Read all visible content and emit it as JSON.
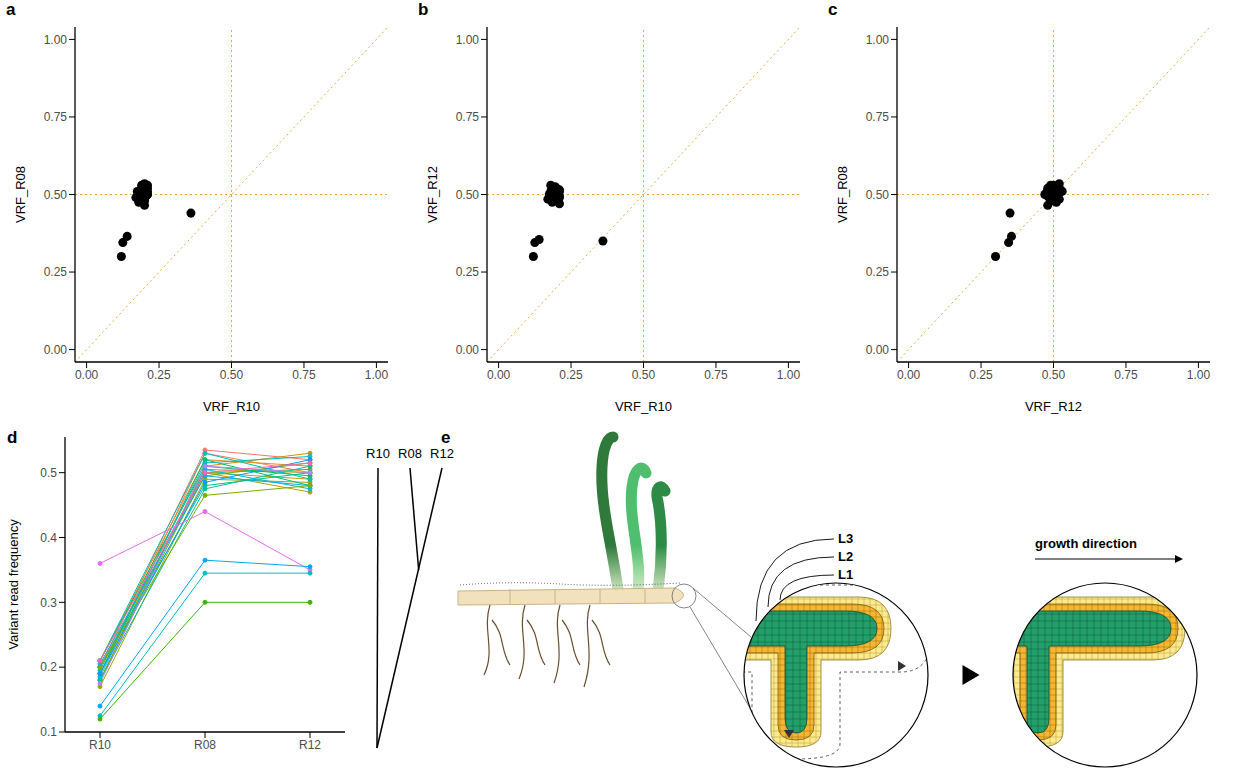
{
  "chart_data": [
    {
      "panel": "a",
      "type": "scatter",
      "x_label": "VRF_R10",
      "y_label": "VRF_R08",
      "color": "#000000",
      "x": [
        0.2,
        0.19,
        0.21,
        0.18,
        0.2,
        0.19,
        0.21,
        0.17,
        0.2,
        0.18,
        0.21,
        0.19,
        0.2,
        0.18,
        0.21,
        0.195,
        0.185,
        0.205,
        0.19,
        0.2,
        0.175,
        0.21,
        0.36,
        0.14,
        0.125,
        0.12
      ],
      "y": [
        0.535,
        0.53,
        0.52,
        0.51,
        0.5,
        0.505,
        0.5,
        0.49,
        0.495,
        0.5,
        0.51,
        0.52,
        0.48,
        0.475,
        0.53,
        0.515,
        0.505,
        0.495,
        0.485,
        0.465,
        0.51,
        0.5,
        0.44,
        0.365,
        0.345,
        0.3
      ],
      "xlim": [
        -0.04,
        1.04
      ],
      "ylim": [
        -0.04,
        1.04
      ],
      "xticks": [
        {
          "value": 0,
          "label": "0.00"
        },
        {
          "value": 0.25,
          "label": "0.25"
        },
        {
          "value": 0.5,
          "label": "0.50"
        },
        {
          "value": 0.75,
          "label": "0.75"
        },
        {
          "value": 1,
          "label": "1.00"
        }
      ],
      "yticks": [
        {
          "value": 0,
          "label": "0.00"
        },
        {
          "value": 0.25,
          "label": "0.25"
        },
        {
          "value": 0.5,
          "label": "0.50"
        },
        {
          "value": 0.75,
          "label": "0.75"
        },
        {
          "value": 1,
          "label": "1.00"
        }
      ],
      "vlines": [
        0.5
      ],
      "hlines": [
        0.5
      ],
      "abline": {
        "intercept": 0,
        "slope": 1
      }
    },
    {
      "panel": "b",
      "type": "scatter",
      "x_label": "VRF_R10",
      "y_label": "VRF_R12",
      "color": "#000000",
      "x": [
        0.2,
        0.19,
        0.21,
        0.18,
        0.2,
        0.19,
        0.21,
        0.17,
        0.2,
        0.18,
        0.21,
        0.19,
        0.2,
        0.18,
        0.21,
        0.195,
        0.185,
        0.205,
        0.19,
        0.2,
        0.175,
        0.21,
        0.36,
        0.14,
        0.125,
        0.12
      ],
      "y": [
        0.52,
        0.5,
        0.51,
        0.53,
        0.49,
        0.5,
        0.47,
        0.485,
        0.515,
        0.505,
        0.495,
        0.48,
        0.5,
        0.51,
        0.49,
        0.525,
        0.475,
        0.48,
        0.52,
        0.48,
        0.5,
        0.515,
        0.35,
        0.355,
        0.345,
        0.3
      ],
      "xlim": [
        -0.04,
        1.04
      ],
      "ylim": [
        -0.04,
        1.04
      ],
      "xticks": [
        {
          "value": 0,
          "label": "0.00"
        },
        {
          "value": 0.25,
          "label": "0.25"
        },
        {
          "value": 0.5,
          "label": "0.50"
        },
        {
          "value": 0.75,
          "label": "0.75"
        },
        {
          "value": 1,
          "label": "1.00"
        }
      ],
      "yticks": [
        {
          "value": 0,
          "label": "0.00"
        },
        {
          "value": 0.25,
          "label": "0.25"
        },
        {
          "value": 0.5,
          "label": "0.50"
        },
        {
          "value": 0.75,
          "label": "0.75"
        },
        {
          "value": 1,
          "label": "1.00"
        }
      ],
      "vlines": [
        0.5
      ],
      "hlines": [
        0.5
      ],
      "abline": {
        "intercept": 0,
        "slope": 1
      }
    },
    {
      "panel": "c",
      "type": "scatter",
      "x_label": "VRF_R12",
      "y_label": "VRF_R08",
      "color": "#000000",
      "x": [
        0.52,
        0.5,
        0.51,
        0.53,
        0.49,
        0.5,
        0.47,
        0.485,
        0.515,
        0.505,
        0.495,
        0.48,
        0.5,
        0.51,
        0.49,
        0.525,
        0.475,
        0.48,
        0.52,
        0.48,
        0.5,
        0.515,
        0.35,
        0.355,
        0.345,
        0.3
      ],
      "y": [
        0.535,
        0.53,
        0.52,
        0.51,
        0.5,
        0.505,
        0.5,
        0.49,
        0.495,
        0.5,
        0.51,
        0.52,
        0.48,
        0.475,
        0.53,
        0.515,
        0.505,
        0.495,
        0.485,
        0.465,
        0.51,
        0.5,
        0.44,
        0.365,
        0.345,
        0.3
      ],
      "xlim": [
        -0.04,
        1.04
      ],
      "ylim": [
        -0.04,
        1.04
      ],
      "xticks": [
        {
          "value": 0,
          "label": "0.00"
        },
        {
          "value": 0.25,
          "label": "0.25"
        },
        {
          "value": 0.5,
          "label": "0.50"
        },
        {
          "value": 0.75,
          "label": "0.75"
        },
        {
          "value": 1,
          "label": "1.00"
        }
      ],
      "yticks": [
        {
          "value": 0,
          "label": "0.00"
        },
        {
          "value": 0.25,
          "label": "0.25"
        },
        {
          "value": 0.5,
          "label": "0.50"
        },
        {
          "value": 0.75,
          "label": "0.75"
        },
        {
          "value": 1,
          "label": "1.00"
        }
      ],
      "vlines": [
        0.5
      ],
      "hlines": [
        0.5
      ],
      "abline": {
        "intercept": 0,
        "slope": 1
      }
    },
    {
      "panel": "d",
      "type": "line",
      "y_label": "Variant read frequency",
      "marker": "circle",
      "categories": [
        "R10",
        "R08",
        "R12"
      ],
      "ylim": [
        0.1,
        0.555
      ],
      "yticks": [
        0.1,
        0.2,
        0.3,
        0.4,
        0.5
      ],
      "series": [
        {
          "color": "#F8766D",
          "values": [
            0.2,
            0.535,
            0.52
          ]
        },
        {
          "color": "#F07F4F",
          "values": [
            0.19,
            0.53,
            0.5
          ]
        },
        {
          "color": "#E7861B",
          "values": [
            0.21,
            0.52,
            0.51
          ]
        },
        {
          "color": "#DB8E00",
          "values": [
            0.18,
            0.51,
            0.53
          ]
        },
        {
          "color": "#CE9700",
          "values": [
            0.2,
            0.5,
            0.49
          ]
        },
        {
          "color": "#BF9F00",
          "values": [
            0.19,
            0.505,
            0.5
          ]
        },
        {
          "color": "#AEA200",
          "values": [
            0.21,
            0.5,
            0.47
          ]
        },
        {
          "color": "#9AA800",
          "values": [
            0.17,
            0.49,
            0.485
          ]
        },
        {
          "color": "#83AD00",
          "values": [
            0.2,
            0.495,
            0.515
          ]
        },
        {
          "color": "#66B200",
          "values": [
            0.18,
            0.5,
            0.505
          ]
        },
        {
          "color": "#00BC52",
          "values": [
            0.21,
            0.51,
            0.495
          ]
        },
        {
          "color": "#00BE6C",
          "values": [
            0.19,
            0.52,
            0.48
          ]
        },
        {
          "color": "#00C085",
          "values": [
            0.2,
            0.48,
            0.5
          ]
        },
        {
          "color": "#00C19C",
          "values": [
            0.18,
            0.475,
            0.51
          ]
        },
        {
          "color": "#00C0B2",
          "values": [
            0.21,
            0.53,
            0.49
          ]
        },
        {
          "color": "#00BDC7",
          "values": [
            0.195,
            0.515,
            0.525
          ]
        },
        {
          "color": "#00B8DA",
          "values": [
            0.185,
            0.505,
            0.475
          ]
        },
        {
          "color": "#00B1EA",
          "values": [
            0.205,
            0.495,
            0.48
          ]
        },
        {
          "color": "#009DFF",
          "values": [
            0.19,
            0.485,
            0.52
          ]
        },
        {
          "color": "#7CAE00",
          "values": [
            0.2,
            0.465,
            0.48
          ]
        },
        {
          "color": "#B385FF",
          "values": [
            0.175,
            0.51,
            0.5
          ]
        },
        {
          "color": "#FF62BC",
          "values": [
            0.21,
            0.5,
            0.515
          ]
        },
        {
          "color": "#E76BF3",
          "values": [
            0.36,
            0.44,
            0.35
          ]
        },
        {
          "color": "#00A8F7",
          "values": [
            0.14,
            0.365,
            0.355
          ]
        },
        {
          "color": "#00BFC4",
          "values": [
            0.125,
            0.345,
            0.345
          ]
        },
        {
          "color": "#3BB600",
          "values": [
            0.12,
            0.3,
            0.3
          ]
        }
      ],
      "tree": {
        "leaves": [
          "R10",
          "R08",
          "R12"
        ]
      }
    }
  ],
  "diagram": {
    "panel": "e",
    "layers": [
      "L3",
      "L2",
      "L1"
    ],
    "direction_label": "growth direction"
  }
}
